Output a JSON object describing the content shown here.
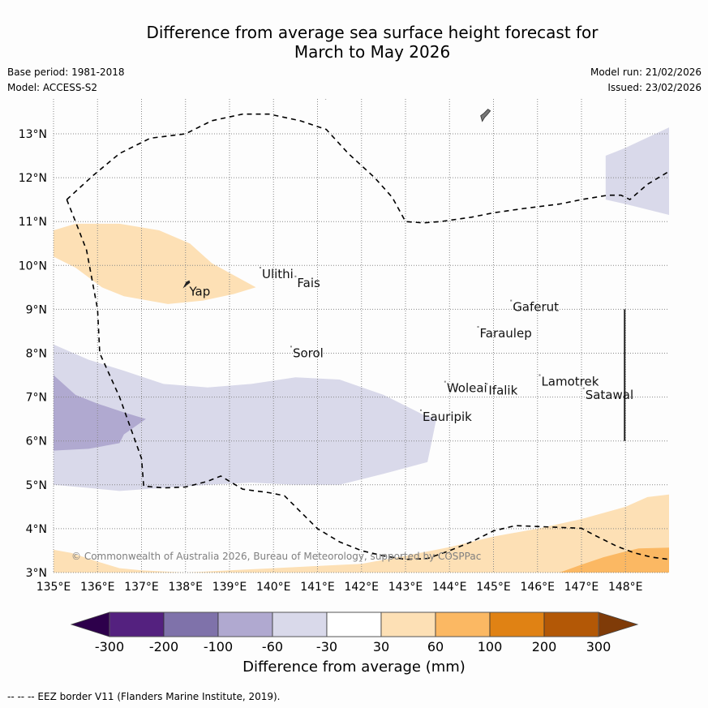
{
  "header": {
    "title_line1": "Difference from average sea surface height forecast for",
    "title_line2": "March to May 2026",
    "base_period": "Base period: 1981-2018",
    "model": "Model: ACCESS-S2",
    "model_run": "Model run: 21/02/2026",
    "issued": "Issued: 23/02/2026"
  },
  "chart_data": {
    "type": "heatmap",
    "title": "Difference from average sea surface height forecast for March to May 2026",
    "xlabel": "",
    "ylabel": "",
    "xlim": [
      135,
      149
    ],
    "ylim": [
      3,
      13.8
    ],
    "grid": true,
    "x_ticks": [
      135,
      136,
      137,
      138,
      139,
      140,
      141,
      142,
      143,
      144,
      145,
      146,
      147,
      148
    ],
    "x_tick_labels": [
      "135°E",
      "136°E",
      "137°E",
      "138°E",
      "139°E",
      "140°E",
      "141°E",
      "142°E",
      "143°E",
      "144°E",
      "145°E",
      "146°E",
      "147°E",
      "148°E"
    ],
    "y_ticks": [
      3,
      4,
      5,
      6,
      7,
      8,
      9,
      10,
      11,
      12,
      13
    ],
    "y_tick_labels": [
      "3°N",
      "4°N",
      "5°N",
      "6°N",
      "7°N",
      "8°N",
      "9°N",
      "10°N",
      "11°N",
      "12°N",
      "13°N"
    ],
    "colorbar": {
      "label": "Difference from average (mm)",
      "boundaries": [
        -300,
        -200,
        -100,
        -60,
        -30,
        30,
        60,
        100,
        200,
        300
      ],
      "tick_labels": [
        "-300",
        "-200",
        "-100",
        "-60",
        "-30",
        "30",
        "60",
        "100",
        "200",
        "300"
      ],
      "colors": [
        "#54217f",
        "#7f72aa",
        "#b0a9d0",
        "#d9d9ea",
        "#ffffff",
        "#fde0b5",
        "#fbb863",
        "#e08214",
        "#b35806"
      ],
      "under_color": "#2d004b",
      "over_color": "#7f3b08",
      "extend": "both"
    },
    "regions": [
      {
        "name": "positive-30-60-northwest",
        "class": "30 to 60",
        "color": "#fde0b5",
        "lonlat": [
          [
            135,
            10.8
          ],
          [
            135.5,
            10.95
          ],
          [
            136.5,
            10.95
          ],
          [
            137.4,
            10.8
          ],
          [
            138.1,
            10.5
          ],
          [
            138.6,
            10.05
          ],
          [
            139.6,
            9.5
          ],
          [
            139.1,
            9.35
          ],
          [
            138.4,
            9.2
          ],
          [
            137.6,
            9.12
          ],
          [
            136.6,
            9.3
          ],
          [
            136.1,
            9.5
          ],
          [
            135.5,
            9.95
          ],
          [
            135,
            10.2
          ]
        ]
      },
      {
        "name": "negative-60-30-band",
        "class": "-60 to -30",
        "color": "#d9d9ea",
        "lonlat": [
          [
            135,
            8.2
          ],
          [
            135.8,
            7.85
          ],
          [
            136.6,
            7.6
          ],
          [
            137.5,
            7.3
          ],
          [
            138.5,
            7.22
          ],
          [
            139.5,
            7.3
          ],
          [
            140.5,
            7.45
          ],
          [
            141.5,
            7.4
          ],
          [
            142.5,
            7.05
          ],
          [
            143.4,
            6.6
          ],
          [
            143.7,
            6.5
          ],
          [
            143.6,
            6.0
          ],
          [
            143.5,
            5.52
          ],
          [
            142.5,
            5.25
          ],
          [
            141.5,
            5.0
          ],
          [
            140.5,
            5.0
          ],
          [
            139.5,
            5.05
          ],
          [
            138.5,
            5.0
          ],
          [
            137.5,
            4.93
          ],
          [
            136.5,
            4.86
          ],
          [
            135.8,
            4.93
          ],
          [
            135,
            5.0
          ]
        ]
      },
      {
        "name": "negative-100-60-west",
        "class": "-100 to -60",
        "color": "#b0a9d0",
        "lonlat": [
          [
            135,
            7.5
          ],
          [
            135.5,
            7.05
          ],
          [
            136.0,
            6.85
          ],
          [
            136.6,
            6.65
          ],
          [
            137.1,
            6.5
          ],
          [
            136.6,
            6.15
          ],
          [
            136.5,
            5.95
          ],
          [
            135.8,
            5.82
          ],
          [
            135,
            5.78
          ]
        ]
      },
      {
        "name": "negative-60-30-northeast",
        "class": "-60 to -30",
        "color": "#d9d9ea",
        "lonlat": [
          [
            147.55,
            12.5
          ],
          [
            148.0,
            12.68
          ],
          [
            149,
            13.15
          ],
          [
            149,
            11.15
          ],
          [
            148.0,
            11.4
          ],
          [
            147.55,
            11.5
          ]
        ]
      },
      {
        "name": "positive-30-60-south",
        "class": "30 to 60",
        "color": "#fde0b5",
        "lonlat": [
          [
            135,
            3.52
          ],
          [
            135.4,
            3.45
          ],
          [
            136.0,
            3.25
          ],
          [
            136.5,
            3.1
          ],
          [
            137.0,
            3.05
          ],
          [
            138.0,
            3.0
          ],
          [
            139.0,
            3.05
          ],
          [
            140.0,
            3.1
          ],
          [
            141.0,
            3.15
          ],
          [
            142.0,
            3.2
          ],
          [
            143.0,
            3.38
          ],
          [
            144.0,
            3.58
          ],
          [
            145.0,
            3.82
          ],
          [
            146.0,
            4.0
          ],
          [
            147.0,
            4.22
          ],
          [
            148.0,
            4.5
          ],
          [
            148.5,
            4.72
          ],
          [
            149,
            4.78
          ],
          [
            149,
            3.0
          ],
          [
            135,
            3.0
          ]
        ]
      },
      {
        "name": "positive-60-100-southeast",
        "class": "60 to 100",
        "color": "#fbb863",
        "lonlat": [
          [
            146.5,
            3.0
          ],
          [
            147.0,
            3.18
          ],
          [
            147.5,
            3.35
          ],
          [
            148.0,
            3.48
          ],
          [
            148.3,
            3.55
          ],
          [
            149,
            3.57
          ],
          [
            149,
            3.0
          ]
        ]
      }
    ],
    "eez_border": [
      [
        [
          141.2,
          13.8
        ],
        [
          140.7,
          13.95
        ],
        [
          140.2,
          14.1
        ]
      ],
      [
        [
          135.3,
          11.5
        ],
        [
          135.9,
          12.05
        ],
        [
          136.5,
          12.55
        ],
        [
          137.2,
          12.9
        ],
        [
          138.0,
          13.0
        ],
        [
          138.6,
          13.3
        ],
        [
          139.3,
          13.45
        ],
        [
          139.9,
          13.45
        ],
        [
          140.6,
          13.3
        ],
        [
          141.2,
          13.1
        ],
        [
          141.7,
          12.55
        ],
        [
          142.3,
          12.0
        ],
        [
          142.7,
          11.55
        ],
        [
          143.0,
          11.0
        ],
        [
          143.4,
          10.97
        ],
        [
          143.8,
          11.0
        ],
        [
          144.5,
          11.1
        ],
        [
          145.0,
          11.2
        ],
        [
          145.7,
          11.3
        ],
        [
          146.5,
          11.4
        ],
        [
          147.0,
          11.5
        ],
        [
          147.6,
          11.6
        ],
        [
          147.9,
          11.6
        ],
        [
          148.1,
          11.5
        ],
        [
          148.5,
          11.85
        ],
        [
          149,
          12.15
        ]
      ],
      [
        [
          135.3,
          11.5
        ],
        [
          135.5,
          11.0
        ],
        [
          135.75,
          10.35
        ],
        [
          136.0,
          9.0
        ],
        [
          136.05,
          8.0
        ],
        [
          136.5,
          7.0
        ],
        [
          137.0,
          5.6
        ],
        [
          137.05,
          4.97
        ],
        [
          137.5,
          4.93
        ],
        [
          138.0,
          4.95
        ],
        [
          138.5,
          5.08
        ],
        [
          138.8,
          5.2
        ],
        [
          139.3,
          4.9
        ],
        [
          139.9,
          4.82
        ],
        [
          140.25,
          4.75
        ],
        [
          140.5,
          4.5
        ],
        [
          141.0,
          4.0
        ],
        [
          141.5,
          3.7
        ],
        [
          142.0,
          3.5
        ],
        [
          142.5,
          3.38
        ],
        [
          143.0,
          3.3
        ],
        [
          143.5,
          3.32
        ],
        [
          144.0,
          3.5
        ],
        [
          144.5,
          3.7
        ],
        [
          145.0,
          3.95
        ],
        [
          145.5,
          4.07
        ],
        [
          146.0,
          4.05
        ],
        [
          146.5,
          4.03
        ],
        [
          147.0,
          4.01
        ],
        [
          147.3,
          3.85
        ],
        [
          147.8,
          3.6
        ],
        [
          148.2,
          3.45
        ],
        [
          148.6,
          3.35
        ],
        [
          149,
          3.3
        ]
      ]
    ],
    "islands": [
      {
        "name": "Yap",
        "lon": 138.05,
        "lat": 9.55,
        "label_dx": 2,
        "label_dy": -2,
        "shape": "yap"
      },
      {
        "name": "Ulithi",
        "lon": 139.7,
        "lat": 9.95
      },
      {
        "name": "Fais",
        "lon": 140.5,
        "lat": 9.75
      },
      {
        "name": "Sorol",
        "lon": 140.4,
        "lat": 8.15
      },
      {
        "name": "Gaferut",
        "lon": 145.4,
        "lat": 9.2
      },
      {
        "name": "Faraulep",
        "lon": 144.65,
        "lat": 8.6
      },
      {
        "name": "Woleai",
        "lon": 143.9,
        "lat": 7.35
      },
      {
        "name": "Ifalik",
        "lon": 144.85,
        "lat": 7.3
      },
      {
        "name": "Eauripik",
        "lon": 143.35,
        "lat": 6.7
      },
      {
        "name": "Lamotrek",
        "lon": 146.05,
        "lat": 7.5
      },
      {
        "name": "Satawal",
        "lon": 147.05,
        "lat": 7.2
      }
    ],
    "guam": {
      "lon": 144.8,
      "lat": 13.45
    },
    "vertical_line": {
      "lon": 148.0,
      "lat_from": 6.0,
      "lat_to": 9.0
    }
  },
  "watermark": "© Commonwealth of Australia 2026, Bureau of Meteorology, supported by COSPPac",
  "footer": "--  --  -- EEZ border V11 (Flanders Marine Institute, 2019)."
}
